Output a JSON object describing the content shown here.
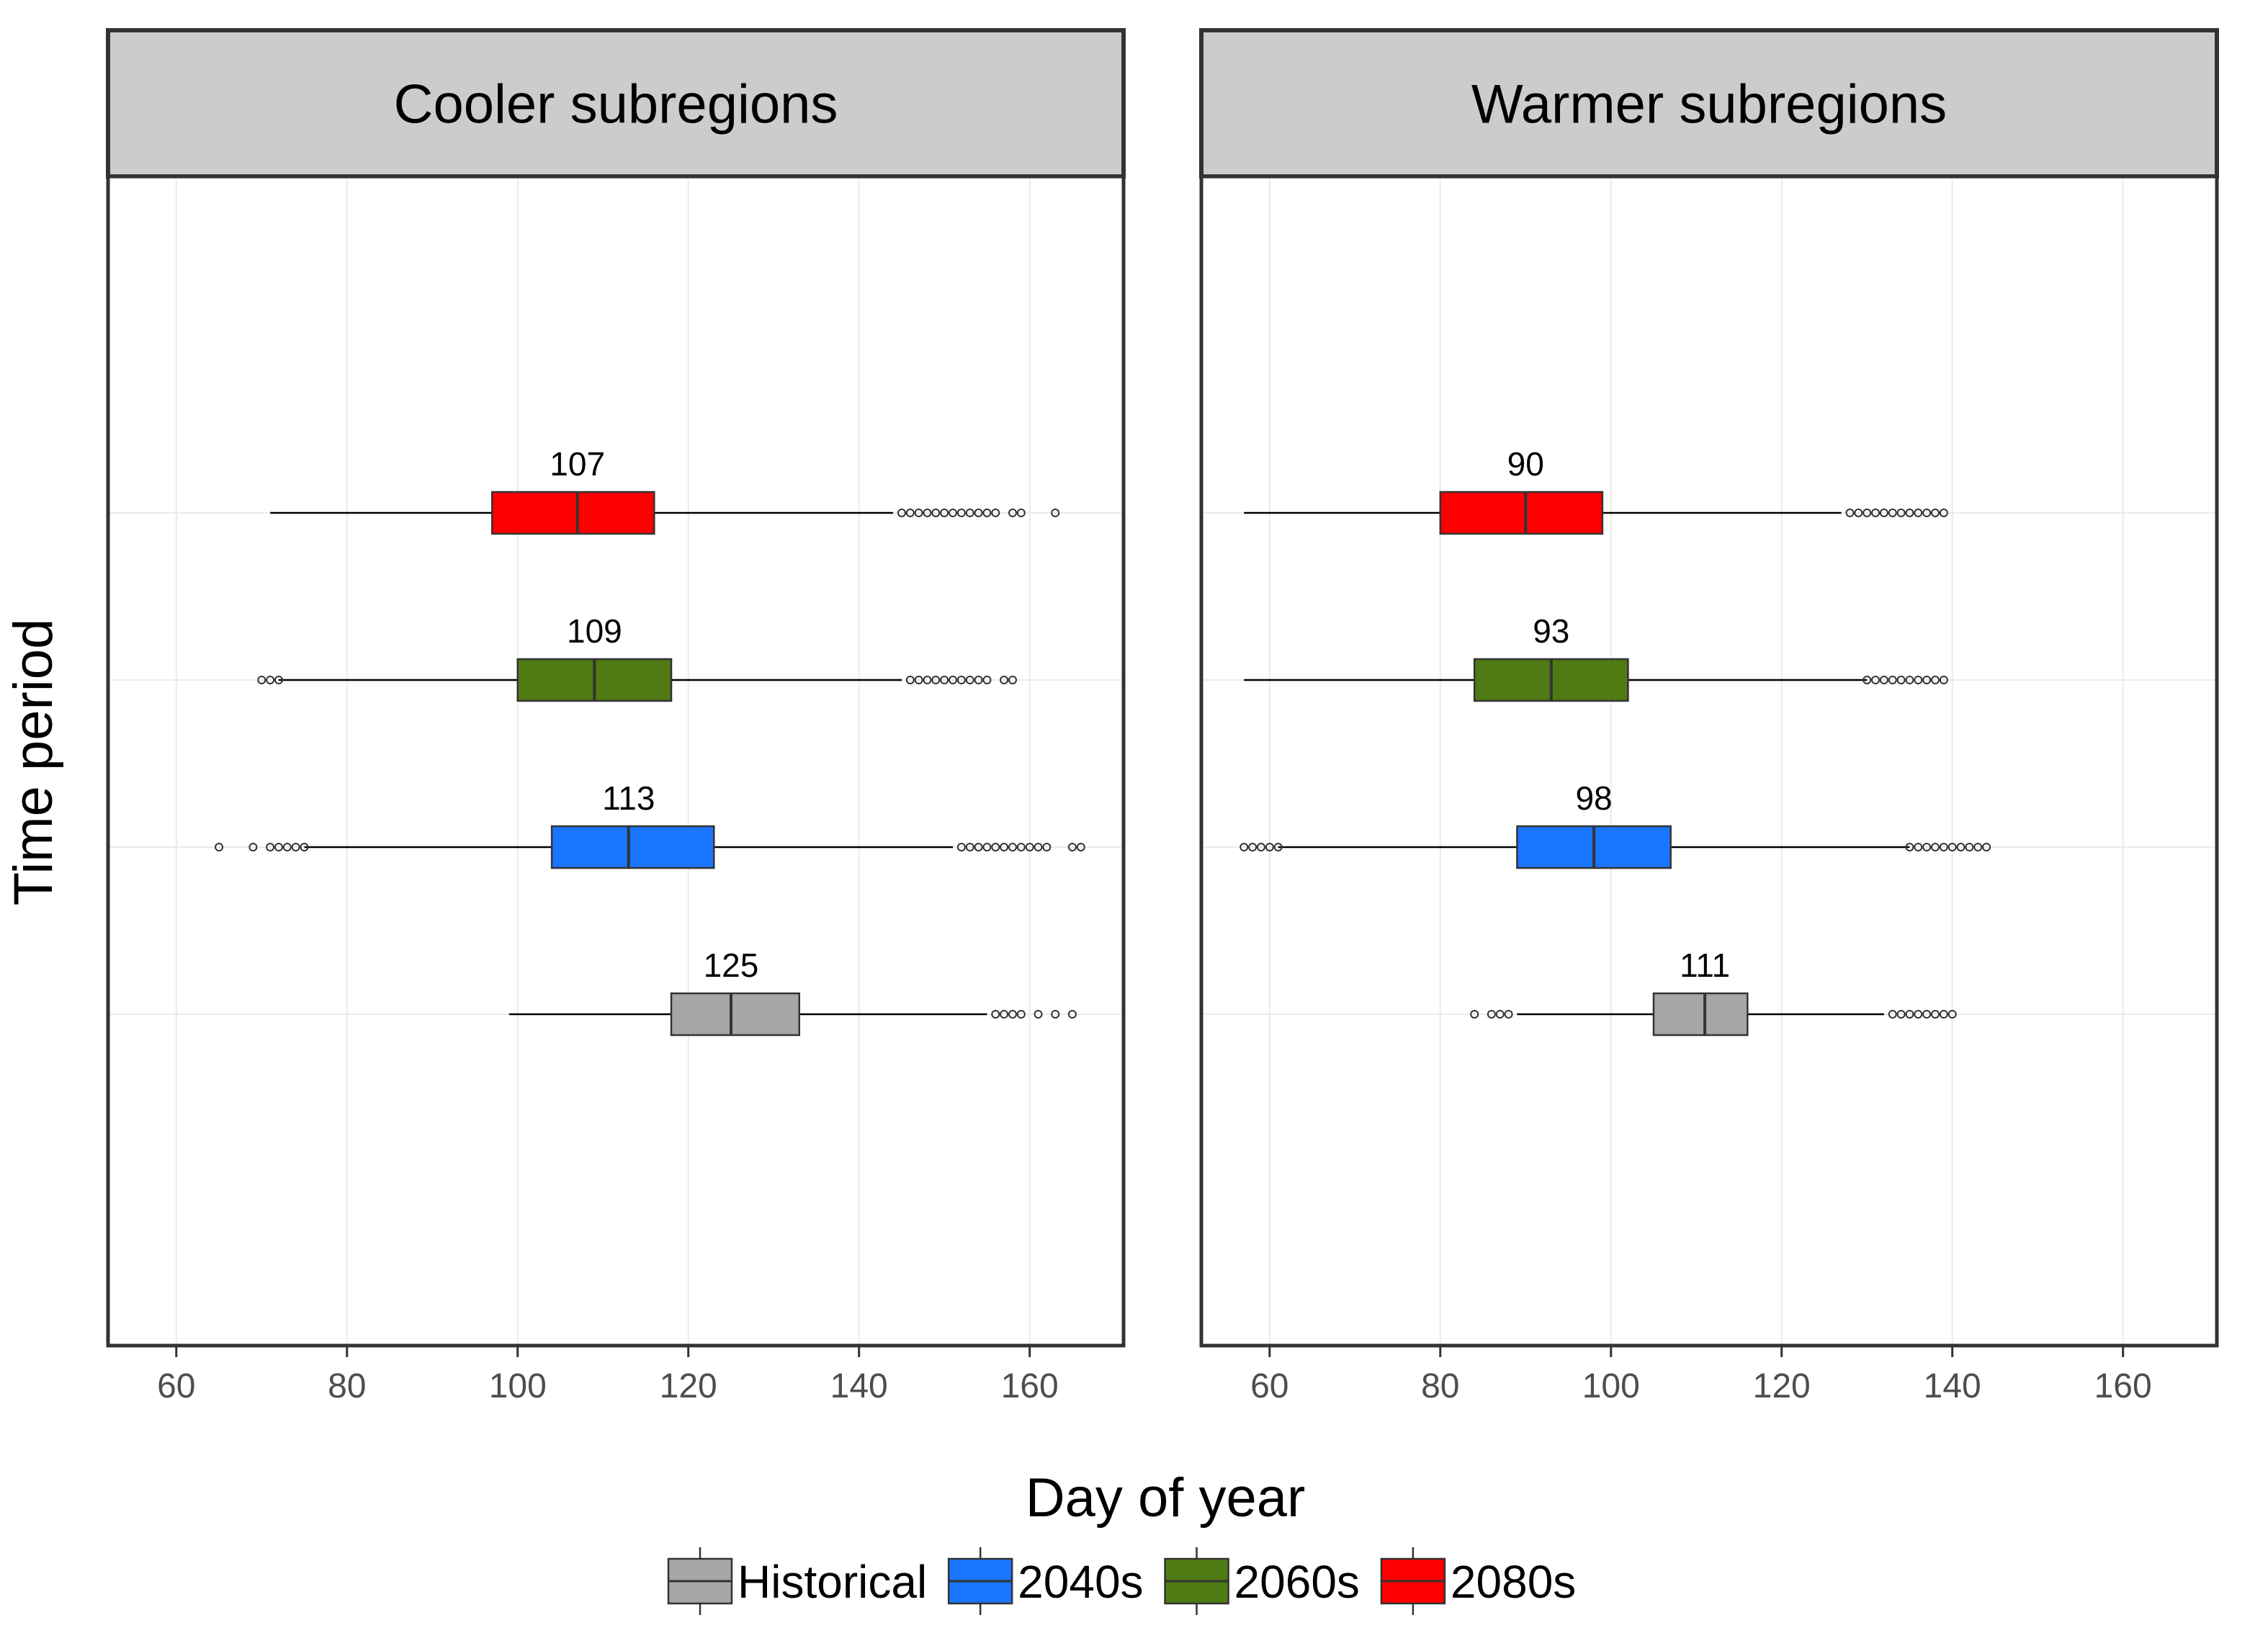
{
  "chart_data": {
    "type": "boxplot",
    "xlabel": "Day of year",
    "ylabel": "Time period",
    "xlim": [
      52,
      171
    ],
    "xticks": [
      60,
      80,
      100,
      120,
      140,
      160
    ],
    "categories": [
      "Historical",
      "2040s",
      "2060s",
      "2080s"
    ],
    "legend": {
      "placement": "bottom",
      "items": [
        {
          "label": "Historical",
          "color": "#a6a6a6"
        },
        {
          "label": "2040s",
          "color": "#1a75ff"
        },
        {
          "label": "2060s",
          "color": "#4f7a14"
        },
        {
          "label": "2080s",
          "color": "#ff0000"
        }
      ]
    },
    "panels": [
      {
        "title": "Cooler subregions",
        "boxes": [
          {
            "period": "Historical",
            "label": "125",
            "median": 125,
            "q1": 118,
            "q3": 133,
            "whisker_low": 99,
            "whisker_high": 155,
            "outliers": [
              156,
              157,
              158,
              159,
              161,
              163,
              165
            ]
          },
          {
            "period": "2040s",
            "label": "113",
            "median": 113,
            "q1": 104,
            "q3": 123,
            "whisker_low": 75,
            "whisker_high": 151,
            "outliers": [
              65,
              69,
              71,
              72,
              73,
              74,
              75,
              152,
              153,
              154,
              155,
              156,
              157,
              158,
              159,
              160,
              161,
              162,
              165,
              166
            ]
          },
          {
            "period": "2060s",
            "label": "109",
            "median": 109,
            "q1": 100,
            "q3": 118,
            "whisker_low": 72,
            "whisker_high": 145,
            "outliers": [
              70,
              71,
              72,
              146,
              147,
              148,
              149,
              150,
              151,
              152,
              153,
              154,
              155,
              157,
              158
            ]
          },
          {
            "period": "2080s",
            "label": "107",
            "median": 107,
            "q1": 97,
            "q3": 116,
            "whisker_low": 71,
            "whisker_high": 144,
            "outliers": [
              145,
              146,
              147,
              148,
              149,
              150,
              151,
              152,
              153,
              154,
              155,
              156,
              158,
              159,
              163
            ]
          }
        ]
      },
      {
        "title": "Warmer subregions",
        "boxes": [
          {
            "period": "Historical",
            "label": "111",
            "median": 111,
            "q1": 105,
            "q3": 116,
            "whisker_low": 89,
            "whisker_high": 132,
            "outliers": [
              84,
              86,
              87,
              88,
              133,
              134,
              135,
              136,
              137,
              138,
              139,
              140
            ]
          },
          {
            "period": "2040s",
            "label": "98",
            "median": 98,
            "q1": 89,
            "q3": 107,
            "whisker_low": 61,
            "whisker_high": 135,
            "outliers": [
              57,
              58,
              59,
              60,
              61,
              135,
              136,
              137,
              138,
              139,
              140,
              141,
              142,
              143,
              144
            ]
          },
          {
            "period": "2060s",
            "label": "93",
            "median": 93,
            "q1": 84,
            "q3": 102,
            "whisker_low": 57,
            "whisker_high": 130,
            "outliers": [
              130,
              131,
              132,
              133,
              134,
              135,
              136,
              137,
              138,
              139
            ]
          },
          {
            "period": "2080s",
            "label": "90",
            "median": 90,
            "q1": 80,
            "q3": 99,
            "whisker_low": 57,
            "whisker_high": 127,
            "outliers": [
              128,
              129,
              130,
              131,
              132,
              133,
              134,
              135,
              136,
              137,
              138,
              139
            ]
          }
        ]
      }
    ]
  }
}
